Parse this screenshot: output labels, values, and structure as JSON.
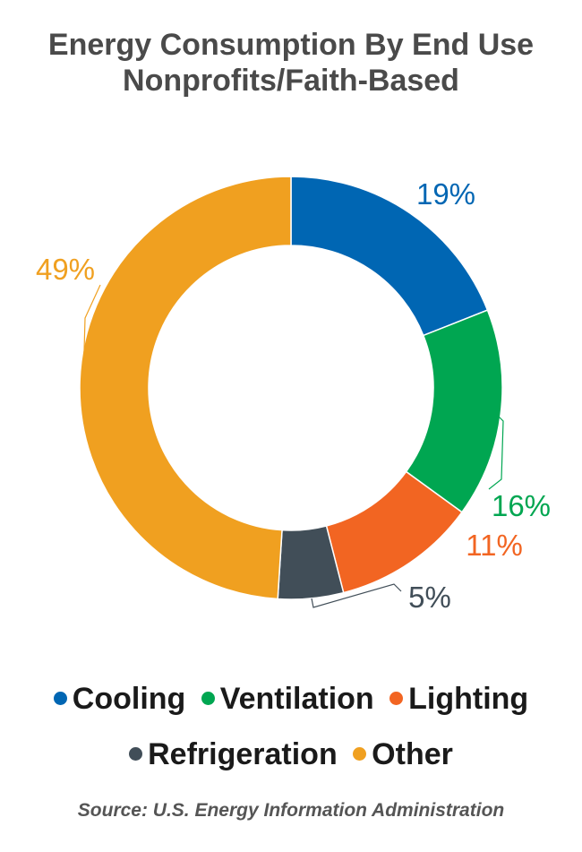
{
  "title_lines": [
    "Energy Consumption By End Use",
    "Nonprofits/Faith-Based"
  ],
  "source": "Source: U.S. Energy Information Administration",
  "chart_data": {
    "type": "pie",
    "donut": true,
    "title": "Energy Consumption By End Use Nonprofits/Faith-Based",
    "legend_position": "bottom",
    "categories": [
      "Cooling",
      "Ventilation",
      "Lighting",
      "Refrigeration",
      "Other"
    ],
    "values": [
      19,
      16,
      11,
      5,
      49
    ],
    "labels": [
      "19%",
      "16%",
      "11%",
      "5%",
      "49%"
    ],
    "colors": [
      "#0066b3",
      "#00a651",
      "#f26522",
      "#414e58",
      "#f0a020"
    ],
    "unit": "%"
  }
}
